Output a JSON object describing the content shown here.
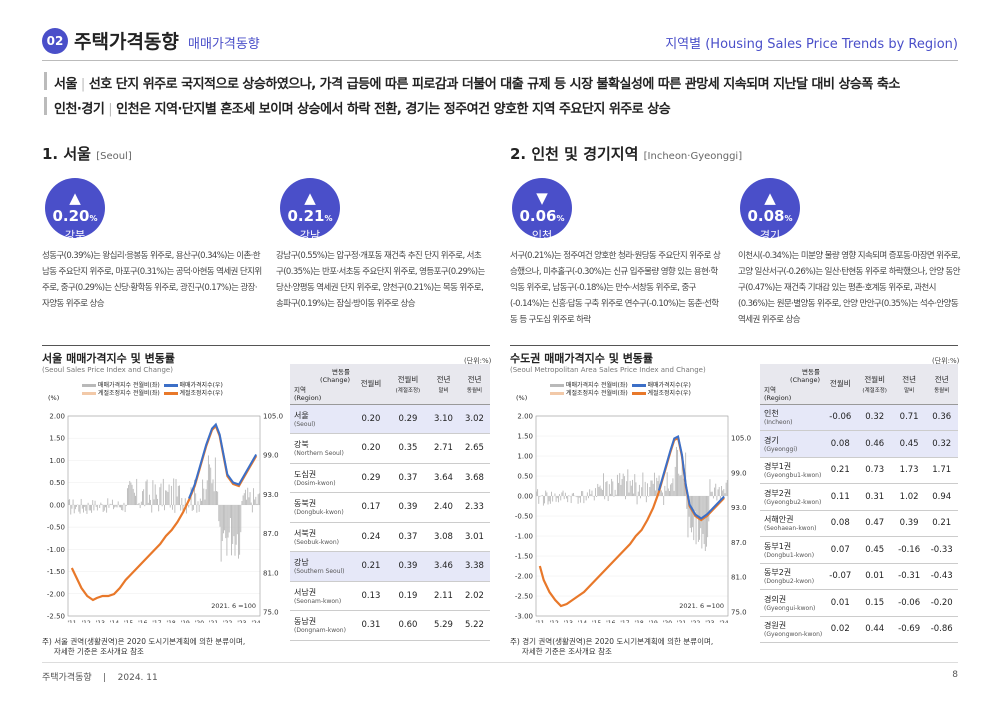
{
  "header": {
    "badge": "02",
    "title": "주택가격동향",
    "subtitle": "매매가격동향",
    "right": "지역별 (Housing Sales Price Trends by Region)"
  },
  "summary": [
    {
      "region": "서울",
      "text": "선호 단지 위주로 국지적으로 상승하였으나, 가격 급등에 따른 피로감과 더불어 대출 규제 등 시장 불확실성에 따른 관망세 지속되며 지난달 대비 상승폭 축소"
    },
    {
      "region": "인천·경기",
      "text": "인천은 지역·단지별 혼조세 보이며 상승에서 하락 전환, 경기는 정주여건 양호한 지역 주요단지 위주로 상승"
    }
  ],
  "seoul": {
    "heading": "1. 서울",
    "heading_en": "[Seoul]",
    "cards": [
      {
        "value": "▲ 0.20",
        "unit": "%",
        "region": "강북",
        "text": "성동구(0.39%)는 왕십리·응봉동 위주로, 용산구(0.34%)는 이촌·한남동 주요단지 위주로, 마포구(0.31%)는 공덕·아현동 역세권 단지위주로, 중구(0.29%)는 신당·황학동 위주로, 광진구(0.17%)는 광장·자양동 위주로 상승"
      },
      {
        "value": "▲ 0.21",
        "unit": "%",
        "region": "강남",
        "text": "강남구(0.55%)는 압구정·개포동 재건축 추진 단지 위주로, 서초구(0.35%)는 반포·서초동 주요단지 위주로, 영등포구(0.29%)는 당산·양평동 역세권 단지 위주로, 양천구(0.21%)는 목동 위주로, 송파구(0.19%)는 잠실·방이동 위주로 상승"
      }
    ],
    "chart": {
      "title": "서울 매매가격지수 및 변동률",
      "sub": "(Seoul Sales Price Index and Change)",
      "unit": "(단위:%)",
      "pct": "(%)",
      "legend": [
        "매매가격지수 전월비(좌)",
        "매매가격지수(우)",
        "계절조정지수 전월비(좌)",
        "계절조정지수(우)"
      ],
      "base": "2021. 6 =100",
      "yl": [
        "2.00",
        "1.50",
        "1.00",
        "0.50",
        "0.00",
        "-0.50",
        "-1.00",
        "-1.50",
        "-2.00",
        "-2.50"
      ],
      "yr": [
        "105.0",
        "99.0",
        "93.0",
        "87.0",
        "81.0",
        "75.0"
      ],
      "x": [
        "'11",
        "'12",
        "'13",
        "'14",
        "'15",
        "'16",
        "'17",
        "'18",
        "'19",
        "'20",
        "'21",
        "'22",
        "'23",
        "'24"
      ]
    },
    "table": {
      "cols": [
        "지역\n(Region)",
        "변동률\n(Change)",
        "전월비",
        "전월비\n(계절조정)",
        "전년\n말비",
        "전년\n동월비"
      ],
      "rows": [
        {
          "r": "서울",
          "e": "(Seoul)",
          "v": [
            "0.20",
            "0.29",
            "3.10",
            "3.02"
          ]
        },
        {
          "r": "강북",
          "e": "(Northern Seoul)",
          "v": [
            "0.20",
            "0.35",
            "2.71",
            "2.65"
          ]
        },
        {
          "r": "도심권",
          "e": "(Dosim-kwon)",
          "v": [
            "0.29",
            "0.37",
            "3.64",
            "3.68"
          ]
        },
        {
          "r": "동북권",
          "e": "(Dongbuk-kwon)",
          "v": [
            "0.17",
            "0.39",
            "2.40",
            "2.33"
          ]
        },
        {
          "r": "서북권",
          "e": "(Seobuk-kwon)",
          "v": [
            "0.24",
            "0.37",
            "3.08",
            "3.01"
          ]
        },
        {
          "r": "강남",
          "e": "(Southern Seoul)",
          "v": [
            "0.21",
            "0.39",
            "3.46",
            "3.38"
          ]
        },
        {
          "r": "서남권",
          "e": "(Seonam-kwon)",
          "v": [
            "0.13",
            "0.19",
            "2.11",
            "2.02"
          ]
        },
        {
          "r": "동남권",
          "e": "(Dongnam-kwon)",
          "v": [
            "0.31",
            "0.60",
            "5.29",
            "5.22"
          ]
        }
      ]
    },
    "note": "주) 서울 권역(생활권역)은 2020 도시기본계획에 의한 분류이며,\n     자세한 기준은 조사개요 참조"
  },
  "metro": {
    "heading": "2. 인천 및 경기지역",
    "heading_en": "[Incheon·Gyeonggi]",
    "cards": [
      {
        "value": "▼ 0.06",
        "unit": "%",
        "region": "인천",
        "text": "서구(0.21%)는 정주여건 양호한 청라·원당동 주요단지 위주로 상승했으나, 미추홀구(-0.30%)는 신규 입주물량 영향 있는 용현·학익동 위주로, 남동구(-0.18%)는 만수·서창동 위주로, 중구(-0.14%)는 신흥·답동 구축 위주로 연수구(-0.10%)는 동춘·선학동 등 구도심 위주로 하락"
      },
      {
        "value": "▲ 0.08",
        "unit": "%",
        "region": "경기",
        "text": "이천시(-0.34%)는 미분양 물량 영향 지속되며 증포동·마장면 위주로, 고양 일산서구(-0.26%)는 일산·탄현동 위주로 하락했으나, 안양 동안구(0.47%)는 재건축 기대감 있는 평촌·호계동 위주로, 과천시(0.36%)는 원문·별양동 위주로, 안양 만안구(0.35%)는 석수·안양동 역세권 위주로 상승"
      }
    ],
    "chart": {
      "title": "수도권 매매가격지수 및 변동률",
      "sub": "(Seoul Metropolitan Area Sales Price Index and Change)",
      "unit": "(단위:%)",
      "pct": "(%)",
      "legend": [
        "매매가격지수 전월비(좌)",
        "매매가격지수(우)",
        "계절조정지수 전월비(좌)",
        "계절조정지수(우)"
      ],
      "base": "2021. 6 =100",
      "yl": [
        "2.00",
        "1.50",
        "1.00",
        "0.50",
        "0.00",
        "-0.50",
        "-1.00",
        "-1.50",
        "-2.00",
        "-2.50",
        "-3.00"
      ],
      "yr": [
        "105.0",
        "99.0",
        "93.0",
        "87.0",
        "81.0",
        "75.0"
      ],
      "x": [
        "'11",
        "'12",
        "'13",
        "'14",
        "'15",
        "'16",
        "'17",
        "'18",
        "'19",
        "'20",
        "'21",
        "'22",
        "'23",
        "'24"
      ]
    },
    "table": {
      "cols": [
        "지역\n(Region)",
        "변동률\n(Change)",
        "전월비",
        "전월비\n(계절조정)",
        "전년\n말비",
        "전년\n동월비"
      ],
      "rows": [
        {
          "r": "인천",
          "e": "(Incheon)",
          "v": [
            "-0.06",
            "0.32",
            "0.71",
            "0.36"
          ]
        },
        {
          "r": "경기",
          "e": "(Gyeonggi)",
          "v": [
            "0.08",
            "0.46",
            "0.45",
            "0.32"
          ]
        },
        {
          "r": "경부1권",
          "e": "(Gyeongbu1-kwon)",
          "v": [
            "0.21",
            "0.73",
            "1.73",
            "1.71"
          ]
        },
        {
          "r": "경부2권",
          "e": "(Gyeongbu2-kwon)",
          "v": [
            "0.11",
            "0.31",
            "1.02",
            "0.94"
          ]
        },
        {
          "r": "서해안권",
          "e": "(Seohaean-kwon)",
          "v": [
            "0.08",
            "0.47",
            "0.39",
            "0.21"
          ]
        },
        {
          "r": "동부1권",
          "e": "(Dongbu1-kwon)",
          "v": [
            "0.07",
            "0.45",
            "-0.16",
            "-0.33"
          ]
        },
        {
          "r": "동부2권",
          "e": "(Dongbu2-kwon)",
          "v": [
            "-0.07",
            "0.01",
            "-0.31",
            "-0.43"
          ]
        },
        {
          "r": "경의권",
          "e": "(Gyeongui-kwon)",
          "v": [
            "0.01",
            "0.15",
            "-0.06",
            "-0.20"
          ]
        },
        {
          "r": "경원권",
          "e": "(Gyeongwon-kwon)",
          "v": [
            "0.02",
            "0.44",
            "-0.69",
            "-0.86"
          ]
        }
      ]
    },
    "note": "주) 경기 권역(생활권역)은 2020 도시기본계획에 의한 분류이며,\n     자세한 기준은 조사개요 참조"
  },
  "footer": {
    "left": "주택가격동향",
    "sep": "|",
    "date": "2024. 11",
    "page": "8"
  },
  "colors": {
    "accent": "#4a4fc9",
    "index": "#3c6fc7",
    "seasonal": "#e8782a",
    "bars": "#b9b9b9"
  }
}
